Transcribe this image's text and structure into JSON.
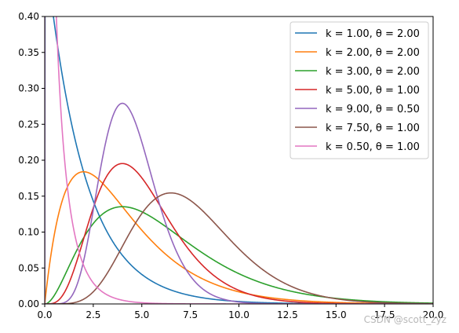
{
  "chart_data": {
    "type": "line",
    "title": "",
    "xlabel": "",
    "ylabel": "",
    "xlim": [
      0,
      20
    ],
    "ylim": [
      0,
      0.4
    ],
    "x_ticks": [
      "0.0",
      "2.5",
      "5.0",
      "7.5",
      "10.0",
      "12.5",
      "15.0",
      "17.5",
      "20.0"
    ],
    "y_ticks": [
      "0.00",
      "0.05",
      "0.10",
      "0.15",
      "0.20",
      "0.25",
      "0.30",
      "0.35",
      "0.40"
    ],
    "grid": false,
    "legend_position": "top-right",
    "series": [
      {
        "name": "k = 1.00,  θ = 2.00",
        "k": 1.0,
        "theta": 2.0,
        "color": "#1f77b4"
      },
      {
        "name": "k = 2.00,  θ = 2.00",
        "k": 2.0,
        "theta": 2.0,
        "color": "#ff7f0e"
      },
      {
        "name": "k = 3.00,  θ = 2.00",
        "k": 3.0,
        "theta": 2.0,
        "color": "#2ca02c"
      },
      {
        "name": "k = 5.00,  θ = 1.00",
        "k": 5.0,
        "theta": 1.0,
        "color": "#d62728"
      },
      {
        "name": "k = 9.00,  θ = 0.50",
        "k": 9.0,
        "theta": 0.5,
        "color": "#9467bd"
      },
      {
        "name": "k = 7.50,  θ = 1.00",
        "k": 7.5,
        "theta": 1.0,
        "color": "#8c564b"
      },
      {
        "name": "k = 0.50,  θ = 1.00",
        "k": 0.5,
        "theta": 1.0,
        "color": "#e377c2"
      }
    ]
  },
  "watermark": "CSDN @scott_zyz"
}
